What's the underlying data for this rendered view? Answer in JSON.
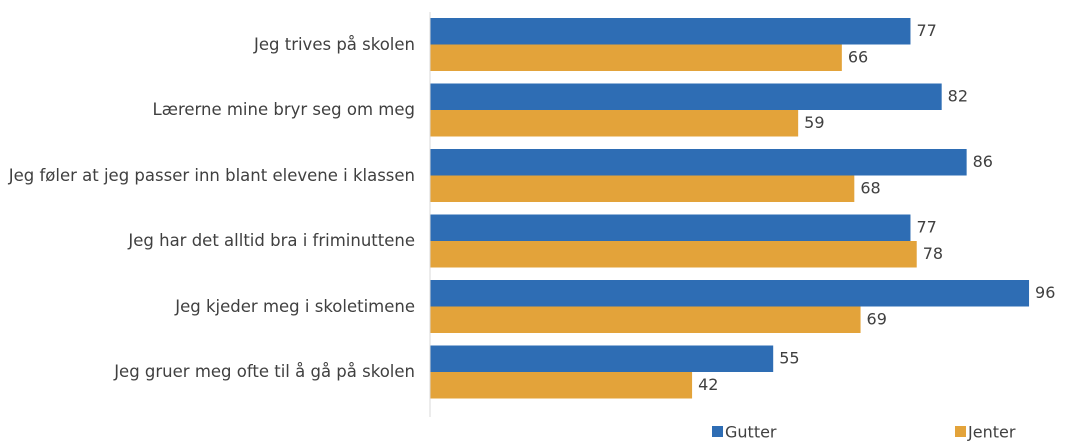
{
  "chart_data": {
    "type": "bar",
    "orientation": "horizontal",
    "categories": [
      "Jeg trives på skolen",
      "Lærerne mine bryr seg om meg",
      "Jeg føler at jeg passer inn blant elevene i klassen",
      "Jeg har det alltid bra i friminuttene",
      "Jeg kjeder meg i skoletimene",
      "Jeg gruer meg ofte til å gå på skolen"
    ],
    "series": [
      {
        "name": "Gutter",
        "color": "#2e6db4",
        "values": [
          77,
          82,
          86,
          77,
          96,
          55
        ]
      },
      {
        "name": "Jenter",
        "color": "#e3a33a",
        "values": [
          66,
          59,
          68,
          78,
          69,
          42
        ]
      }
    ],
    "xlim": [
      0,
      100
    ],
    "legend": "bottom"
  }
}
